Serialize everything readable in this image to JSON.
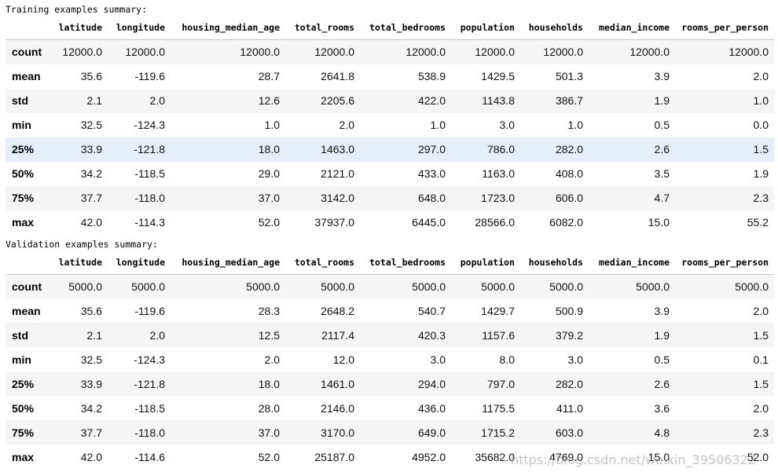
{
  "training": {
    "caption": "Training examples summary:",
    "columns": [
      "latitude",
      "longitude",
      "housing_median_age",
      "total_rooms",
      "total_bedrooms",
      "population",
      "households",
      "median_income",
      "rooms_per_person"
    ],
    "rows": [
      {
        "label": "count",
        "values": [
          "12000.0",
          "12000.0",
          "12000.0",
          "12000.0",
          "12000.0",
          "12000.0",
          "12000.0",
          "12000.0",
          "12000.0"
        ]
      },
      {
        "label": "mean",
        "values": [
          "35.6",
          "-119.6",
          "28.7",
          "2641.8",
          "538.9",
          "1429.5",
          "501.3",
          "3.9",
          "2.0"
        ]
      },
      {
        "label": "std",
        "values": [
          "2.1",
          "2.0",
          "12.6",
          "2205.6",
          "422.0",
          "1143.8",
          "386.7",
          "1.9",
          "1.0"
        ]
      },
      {
        "label": "min",
        "values": [
          "32.5",
          "-124.3",
          "1.0",
          "2.0",
          "1.0",
          "3.0",
          "1.0",
          "0.5",
          "0.0"
        ]
      },
      {
        "label": "25%",
        "values": [
          "33.9",
          "-121.8",
          "18.0",
          "1463.0",
          "297.0",
          "786.0",
          "282.0",
          "2.6",
          "1.5"
        ]
      },
      {
        "label": "50%",
        "values": [
          "34.2",
          "-118.5",
          "29.0",
          "2121.0",
          "433.0",
          "1163.0",
          "408.0",
          "3.5",
          "1.9"
        ]
      },
      {
        "label": "75%",
        "values": [
          "37.7",
          "-118.0",
          "37.0",
          "3142.0",
          "648.0",
          "1723.0",
          "606.0",
          "4.7",
          "2.3"
        ]
      },
      {
        "label": "max",
        "values": [
          "42.0",
          "-114.3",
          "52.0",
          "37937.0",
          "6445.0",
          "28566.0",
          "6082.0",
          "15.0",
          "55.2"
        ]
      }
    ]
  },
  "validation": {
    "caption": "Validation examples summary:",
    "columns": [
      "latitude",
      "longitude",
      "housing_median_age",
      "total_rooms",
      "total_bedrooms",
      "population",
      "households",
      "median_income",
      "rooms_per_person"
    ],
    "rows": [
      {
        "label": "count",
        "values": [
          "5000.0",
          "5000.0",
          "5000.0",
          "5000.0",
          "5000.0",
          "5000.0",
          "5000.0",
          "5000.0",
          "5000.0"
        ]
      },
      {
        "label": "mean",
        "values": [
          "35.6",
          "-119.6",
          "28.3",
          "2648.2",
          "540.7",
          "1429.7",
          "500.9",
          "3.9",
          "2.0"
        ]
      },
      {
        "label": "std",
        "values": [
          "2.1",
          "2.0",
          "12.5",
          "2117.4",
          "420.3",
          "1157.6",
          "379.2",
          "1.9",
          "1.5"
        ]
      },
      {
        "label": "min",
        "values": [
          "32.5",
          "-124.3",
          "2.0",
          "12.0",
          "3.0",
          "8.0",
          "3.0",
          "0.5",
          "0.1"
        ]
      },
      {
        "label": "25%",
        "values": [
          "33.9",
          "-121.8",
          "18.0",
          "1461.0",
          "294.0",
          "797.0",
          "282.0",
          "2.6",
          "1.5"
        ]
      },
      {
        "label": "50%",
        "values": [
          "34.2",
          "-118.5",
          "28.0",
          "2146.0",
          "436.0",
          "1175.5",
          "411.0",
          "3.6",
          "2.0"
        ]
      },
      {
        "label": "75%",
        "values": [
          "37.7",
          "-118.0",
          "37.0",
          "3170.0",
          "649.0",
          "1715.2",
          "603.0",
          "4.8",
          "2.3"
        ]
      },
      {
        "label": "max",
        "values": [
          "42.0",
          "-114.6",
          "52.0",
          "25187.0",
          "4952.0",
          "35682.0",
          "4769.0",
          "15.0",
          "52.0"
        ]
      }
    ]
  },
  "watermark": "https://blog.csdn.net/weixin_39506322"
}
